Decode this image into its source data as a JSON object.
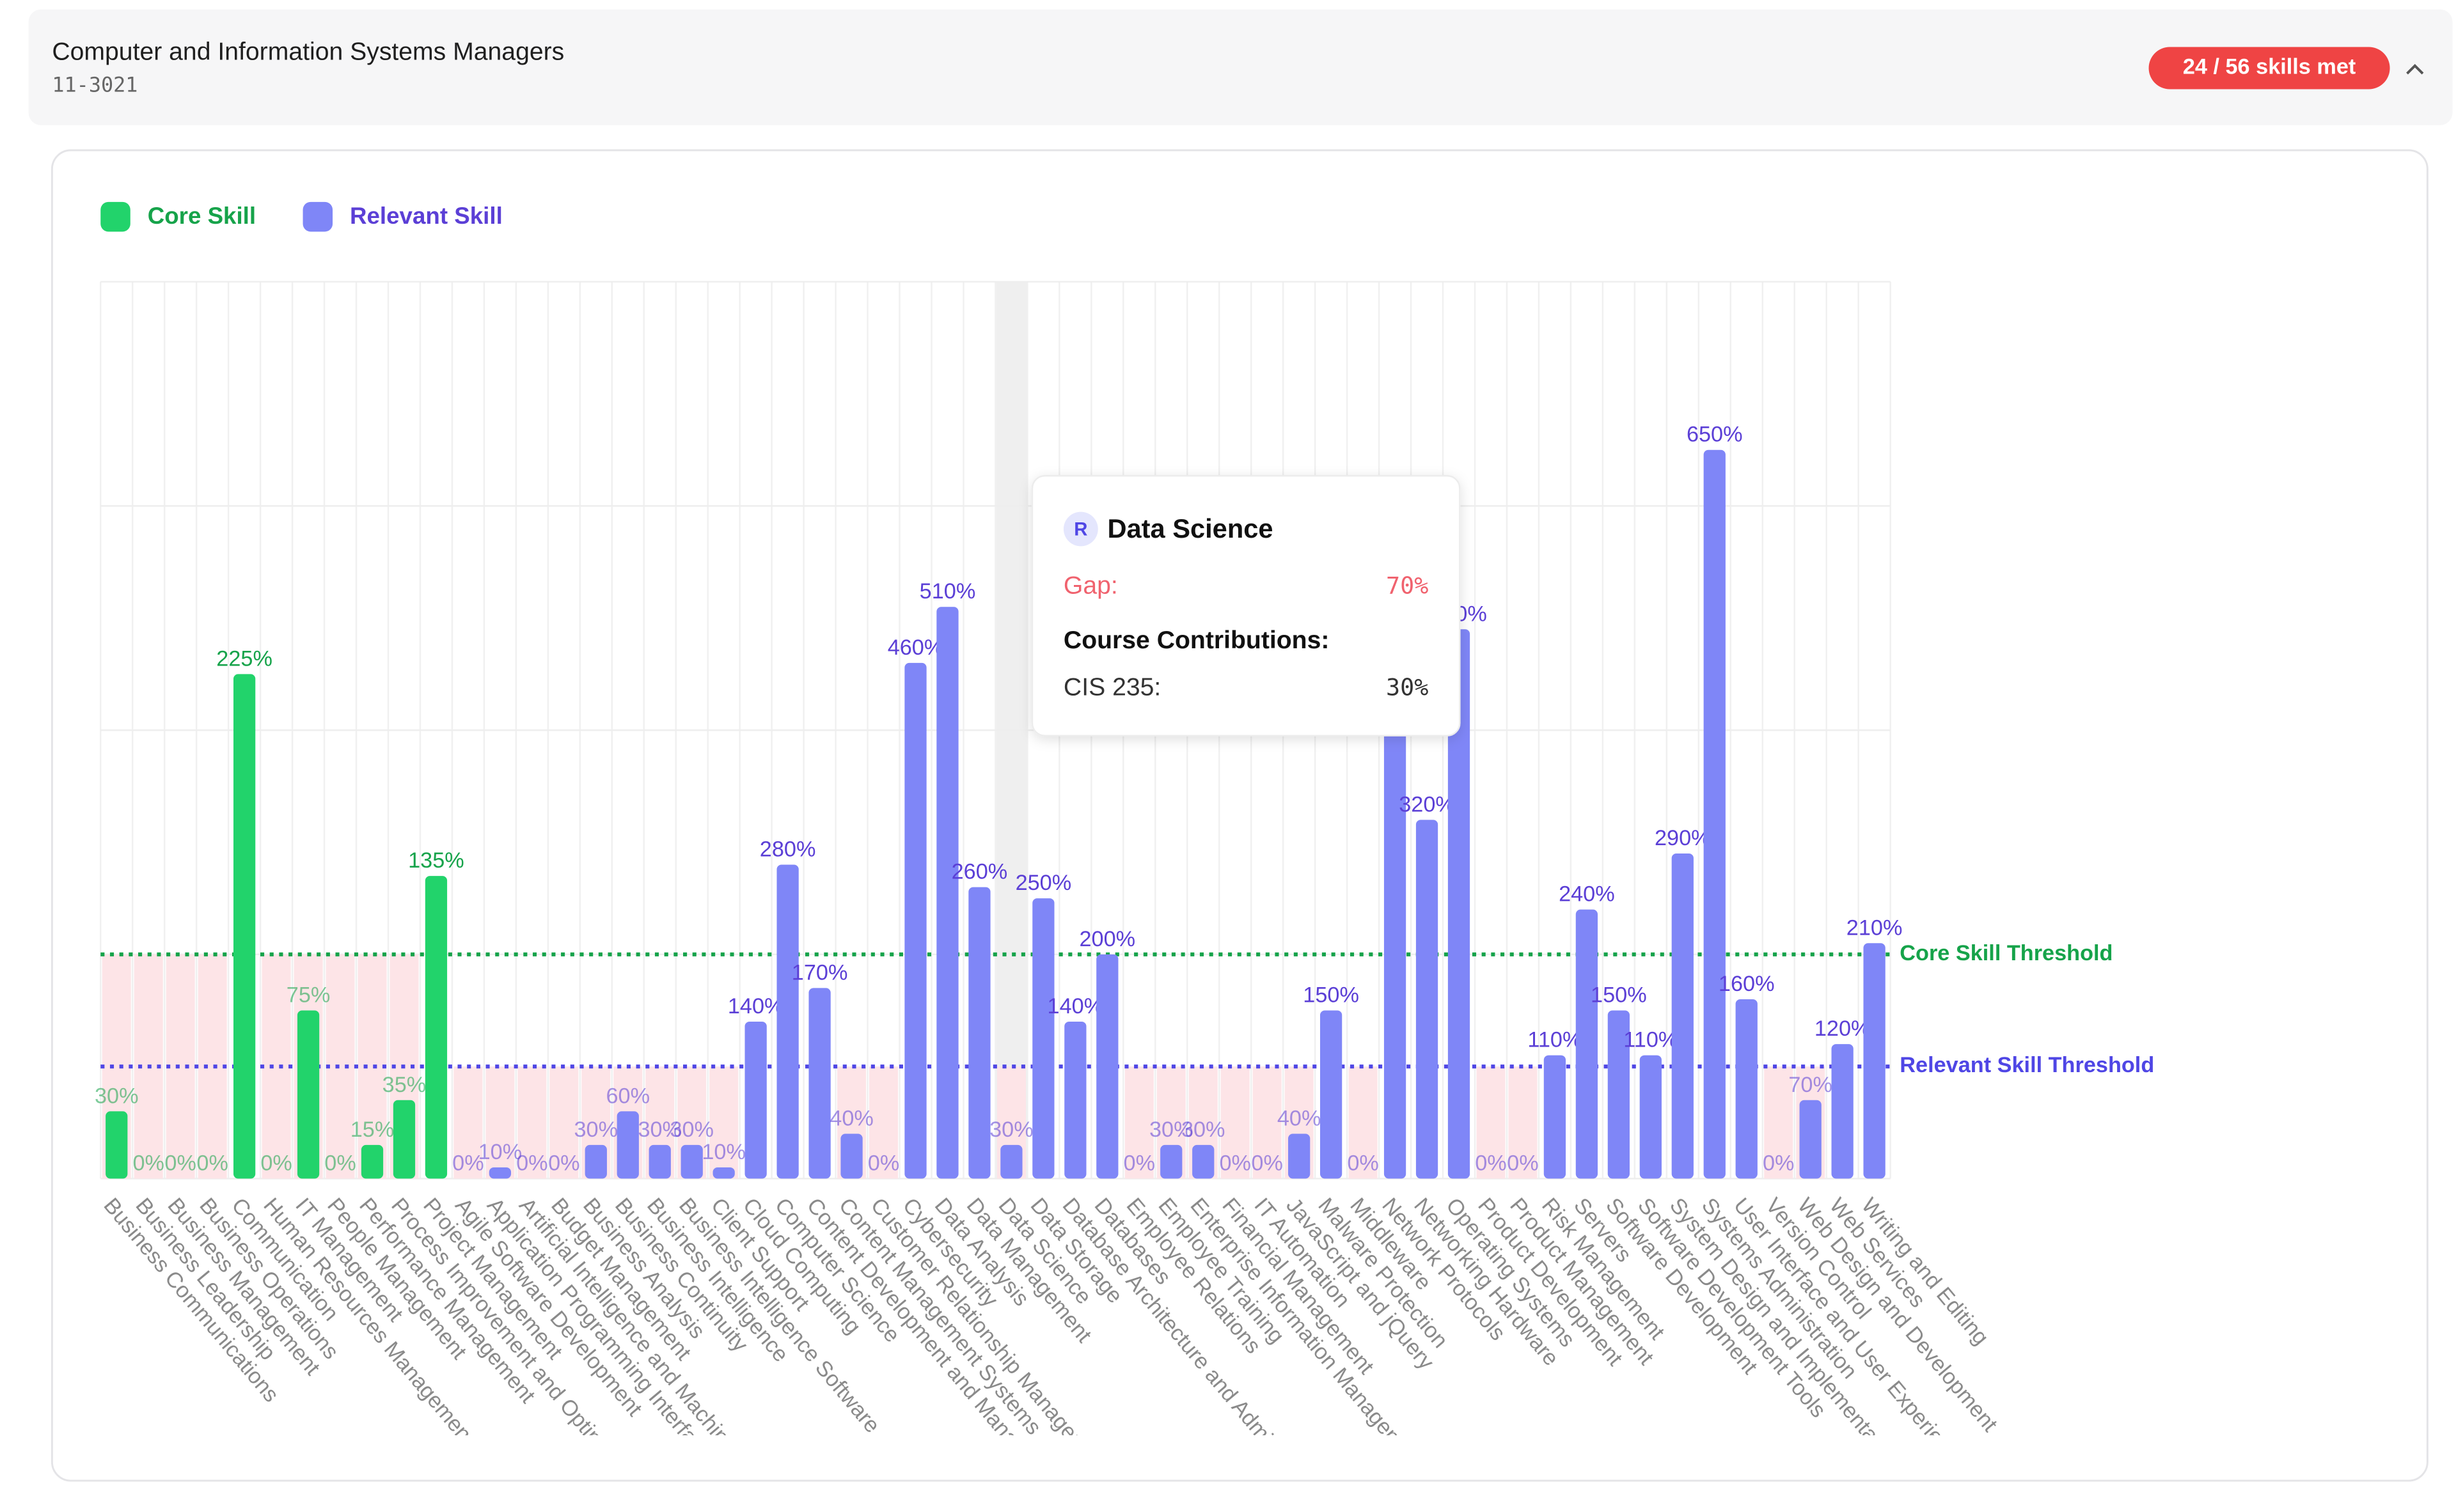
{
  "header": {
    "title": "Computer and Information Systems Managers",
    "code": "11-3021",
    "badge": "24 / 56 skills met"
  },
  "tooltip": {
    "badge": "R",
    "title": "Data Science",
    "gap_label": "Gap:",
    "gap": "70%",
    "contributions_title": "Course Contributions:",
    "rows": [
      {
        "label": "CIS 235:",
        "value": "30%"
      }
    ]
  },
  "chart_data": {
    "type": "bar",
    "categories": [
      "Business Communications",
      "Business Leadership",
      "Business Management",
      "Business Operations",
      "Communication",
      "Human Resources Management",
      "IT Management",
      "People Management",
      "Performance Management",
      "Process Improvement and Optimization",
      "Project Management",
      "Agile Software Development",
      "Application Programming Interface",
      "Artificial Intelligence and Machine Learning",
      "Budget Management",
      "Business Analysis",
      "Business Continuity",
      "Business Intelligence",
      "Business Intelligence Software",
      "Client Support",
      "Cloud Computing",
      "Computer Science",
      "Content Development and Management",
      "Content Management Systems",
      "Customer Relationship Management",
      "Cybersecurity",
      "Data Analysis",
      "Data Management",
      "Data Science",
      "Data Storage",
      "Database Architecture and Administration",
      "Databases",
      "Employee Relations",
      "Employee Training",
      "Enterprise Information Management",
      "Financial Management",
      "IT Automation",
      "JavaScript and jQuery",
      "Malware Protection",
      "Middleware",
      "Network Protocols",
      "Networking Hardware",
      "Operating Systems",
      "Product Development",
      "Product Management",
      "Risk Management",
      "Servers",
      "Software Development",
      "Software Development Tools",
      "System Design and Implementation",
      "Systems Administration",
      "User Interface and User Experience",
      "Version Control",
      "Web Design and Development",
      "Web Services",
      "Writing and Editing"
    ],
    "series": [
      {
        "name": "Core Skill",
        "color": "#22d36b",
        "label_color": "#16a34a",
        "axis": "y2",
        "values": [
          30,
          0,
          0,
          0,
          225,
          0,
          75,
          0,
          15,
          35,
          135,
          null,
          null,
          null,
          null,
          null,
          null,
          null,
          null,
          null,
          null,
          null,
          null,
          null,
          null,
          null,
          null,
          null,
          null,
          null,
          null,
          null,
          null,
          null,
          null,
          null,
          null,
          null,
          null,
          null,
          null,
          null,
          null,
          null,
          null,
          null,
          null,
          null,
          null,
          null,
          null,
          null,
          null,
          null,
          null,
          null
        ],
        "value_labels": [
          "30%",
          "0%",
          "0%",
          "0%",
          "225%",
          "0%",
          "75%",
          "0%",
          "15%",
          "35%",
          "135%",
          null,
          null,
          null,
          null,
          null,
          null,
          null,
          null,
          null,
          null,
          null,
          null,
          null,
          null,
          null,
          null,
          null,
          null,
          null,
          null,
          null,
          null,
          null,
          null,
          null,
          null,
          null,
          null,
          null,
          null,
          null,
          null,
          null,
          null,
          null,
          null,
          null,
          null,
          null,
          null,
          null,
          null,
          null,
          null,
          null
        ]
      },
      {
        "name": "Relevant Skill",
        "color": "#7f86f7",
        "label_color": "#5b3fd6",
        "values": [
          null,
          null,
          null,
          null,
          null,
          null,
          null,
          null,
          null,
          null,
          null,
          0,
          10,
          0,
          0,
          30,
          60,
          30,
          30,
          10,
          140,
          280,
          170,
          40,
          0,
          460,
          510,
          260,
          30,
          250,
          140,
          200,
          0,
          30,
          30,
          0,
          0,
          40,
          150,
          0,
          430,
          320,
          490,
          0,
          0,
          110,
          240,
          150,
          110,
          290,
          650,
          160,
          0,
          70,
          120,
          210
        ],
        "value_labels": [
          null,
          null,
          null,
          null,
          null,
          null,
          null,
          null,
          null,
          null,
          null,
          "0%",
          "10%",
          "0%",
          "0%",
          "30%",
          "60%",
          "30%",
          "30%",
          "10%",
          "140%",
          "280%",
          "170%",
          "40%",
          "0%",
          "460%",
          "510%",
          "260%",
          "30%",
          "250%",
          "140%",
          "200%",
          "0%",
          "30%",
          "30%",
          "0%",
          "0%",
          "40%",
          "150%",
          "0%",
          "430%",
          "320%",
          "490%",
          "0%",
          "0%",
          "110%",
          "240%",
          "150%",
          "110%",
          "290%",
          "650%",
          "160%",
          "0%",
          "70%",
          "120%",
          "210%"
        ]
      }
    ],
    "ylim": [
      0,
      800
    ],
    "yticks": [
      0,
      200,
      400,
      600,
      800
    ],
    "y2lim": [
      0,
      400
    ],
    "grid": true,
    "thresholds": [
      {
        "label": "Core Skill Threshold",
        "value": 100,
        "axis": "y2",
        "color": "#16a34a"
      },
      {
        "label": "Relevant Skill Threshold",
        "value": 100,
        "color": "#4f46e5"
      }
    ],
    "gap_color": "#fde4e7"
  }
}
